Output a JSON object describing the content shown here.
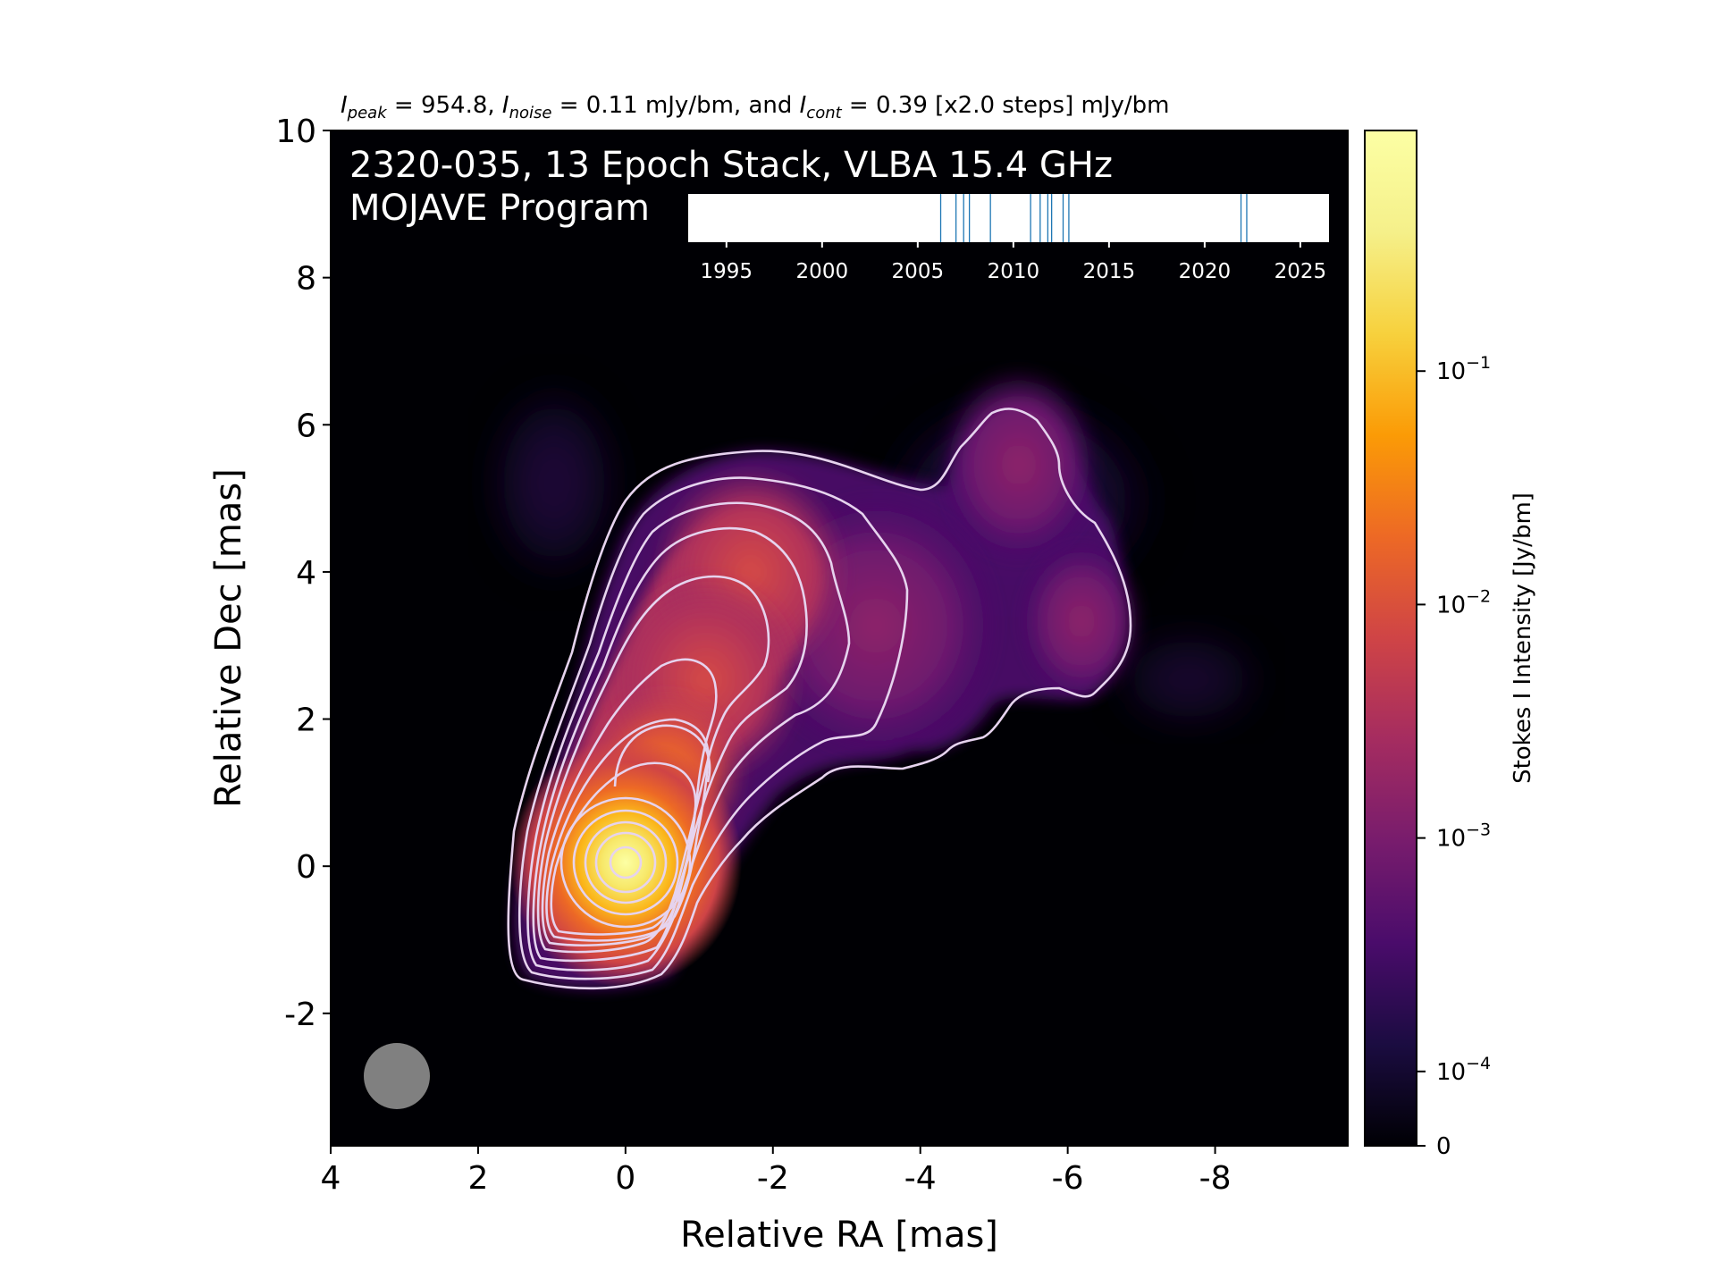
{
  "chart_data": {
    "type": "heatmap",
    "header": {
      "i_peak_symbol": "I",
      "i_peak_sub": "peak",
      "i_peak_text": " = 954.8, ",
      "i_noise_symbol": "I",
      "i_noise_sub": "noise",
      "i_noise_text": " = 0.11 mJy/bm, and ",
      "i_cont_symbol": "I",
      "i_cont_sub": "cont",
      "i_cont_text": " = 0.39 [x2.0 steps] mJy/bm"
    },
    "title_line1": "2320-035, 13 Epoch Stack, VLBA 15.4 GHz",
    "title_line2": "MOJAVE Program",
    "xlabel": "Relative RA [mas]",
    "ylabel": "Relative Dec [mas]",
    "xlim": [
      4,
      -9.8
    ],
    "ylim": [
      -3.8,
      10
    ],
    "x_ticks": [
      "4",
      "2",
      "0",
      "-2",
      "-4",
      "-6",
      "-8"
    ],
    "x_tick_values": [
      4,
      2,
      0,
      -2,
      -4,
      -6,
      -8
    ],
    "y_ticks": [
      "10",
      "8",
      "6",
      "4",
      "2",
      "0",
      "-2"
    ],
    "y_tick_values": [
      10,
      8,
      6,
      4,
      2,
      0,
      -2
    ],
    "colorbar": {
      "label": "Stokes I Intensity [Jy/bm]",
      "scale": "log",
      "ticks": [
        {
          "base": "10",
          "exp": "−1",
          "value": 0.1
        },
        {
          "base": "10",
          "exp": "−2",
          "value": 0.01
        },
        {
          "base": "10",
          "exp": "−3",
          "value": 0.001
        },
        {
          "base": "10",
          "exp": "−4",
          "value": 0.0001
        },
        {
          "base": "0",
          "exp": "",
          "value": 0
        }
      ],
      "colormap": "inferno"
    },
    "epoch_timeline": {
      "range": [
        1993,
        2026.5
      ],
      "tick_labels": [
        "1995",
        "2000",
        "2005",
        "2010",
        "2015",
        "2020",
        "2025"
      ],
      "tick_values": [
        1995,
        2000,
        2005,
        2010,
        2015,
        2020,
        2025
      ],
      "epochs": [
        2006.2,
        2007.0,
        2007.4,
        2007.7,
        2008.8,
        2010.9,
        2011.4,
        2011.8,
        2012.0,
        2012.6,
        2012.9,
        2021.9,
        2022.2
      ],
      "epoch_line_color": "#1f77b4"
    },
    "beam_color": "#808080",
    "contour_color": "#e6d3ee",
    "emission_components": [
      {
        "ra": 0.0,
        "dec": 0.0,
        "peak_jy": 0.9548
      },
      {
        "ra": -0.55,
        "dec": 1.4,
        "peak_jy": 0.035
      },
      {
        "ra": -1.6,
        "dec": 4.0,
        "peak_jy": 0.012
      },
      {
        "ra": -1.1,
        "dec": 2.8,
        "peak_jy": 0.01
      },
      {
        "ra": -5.2,
        "dec": 5.8,
        "peak_jy": 0.0015
      },
      {
        "ra": -6.2,
        "dec": 3.3,
        "peak_jy": 0.0015
      }
    ]
  }
}
